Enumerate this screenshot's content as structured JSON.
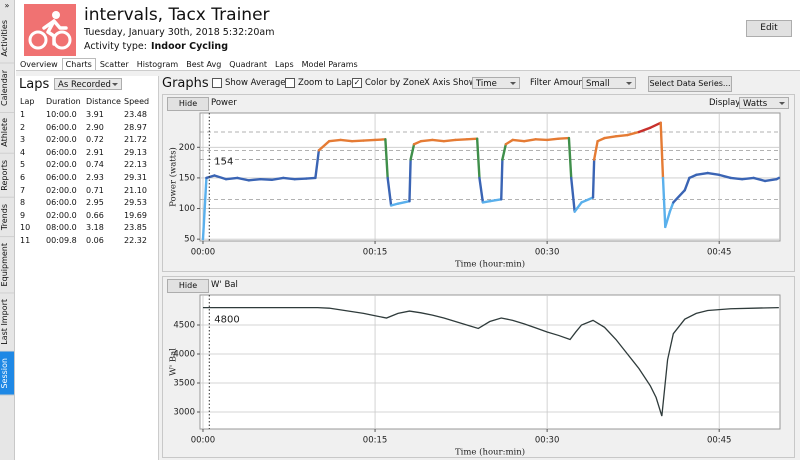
{
  "sidebar": {
    "toggle": "»",
    "tabs": [
      "Activities",
      "Calendar",
      "Athlete",
      "Reports",
      "Trends",
      "Equipment",
      "Last Import",
      "Session"
    ],
    "selected": 7
  },
  "header": {
    "title": "intervals, Tacx Trainer",
    "date": "Tuesday, January 30th, 2018 5:32:20am",
    "activity_type_label": "Activity type:",
    "activity_type": "Indoor Cycling",
    "edit": "Edit"
  },
  "tabs": {
    "items": [
      "Overview",
      "Charts",
      "Scatter",
      "Histogram",
      "Best Avg",
      "Quadrant",
      "Laps",
      "Model Params"
    ],
    "selected": 1
  },
  "laps": {
    "title": "Laps",
    "mode": "As Recorded",
    "columns": [
      "Lap",
      "Duration",
      "Distance",
      "Speed"
    ],
    "rows": [
      [
        "1",
        "10:00.0",
        "3.91",
        "23.48"
      ],
      [
        "2",
        "06:00.0",
        "2.90",
        "28.97"
      ],
      [
        "3",
        "02:00.0",
        "0.72",
        "21.72"
      ],
      [
        "4",
        "06:00.0",
        "2.91",
        "29.13"
      ],
      [
        "5",
        "02:00.0",
        "0.74",
        "22.13"
      ],
      [
        "6",
        "06:00.0",
        "2.93",
        "29.31"
      ],
      [
        "7",
        "02:00.0",
        "0.71",
        "21.10"
      ],
      [
        "8",
        "06:00.0",
        "2.95",
        "29.53"
      ],
      [
        "9",
        "02:00.0",
        "0.66",
        "19.69"
      ],
      [
        "10",
        "08:00.0",
        "3.18",
        "23.85"
      ],
      [
        "11",
        "00:09.8",
        "0.06",
        "22.32"
      ]
    ]
  },
  "graphs": {
    "title": "Graphs",
    "options": [
      {
        "label": "Show Average",
        "checked": false
      },
      {
        "label": "Zoom to Lap",
        "checked": false
      },
      {
        "label": "Color by Zone",
        "checked": true
      }
    ],
    "x_axis_label": "X Axis Shows:",
    "x_axis_value": "Time",
    "filter_label": "Filter Amount:",
    "filter_value": "Small",
    "select_button": "Select Data Series..."
  },
  "charts": [
    {
      "type": "line",
      "hide": "Hide",
      "name": "Power",
      "display_label": "Display:",
      "display_value": "Watts",
      "ylabel": "Power (watts)",
      "xlabel": "Time (hour:min)",
      "grid": true,
      "xlim": [
        -0.26,
        50.3
      ],
      "ylim": [
        47,
        256
      ],
      "xticks": [
        {
          "value": 0,
          "label": "00:00"
        },
        {
          "value": 15,
          "label": "00:15"
        },
        {
          "value": 30,
          "label": "00:30"
        },
        {
          "value": 45,
          "label": "00:45"
        }
      ],
      "yticks": [
        50,
        100,
        150,
        200
      ],
      "zones": [
        {
          "min": 0,
          "color": "#5ab0ec"
        },
        {
          "min": 115,
          "color": "#3a64b4"
        },
        {
          "min": 180,
          "color": "#3f8f4a"
        },
        {
          "min": 195,
          "color": "#e57b34"
        },
        {
          "min": 225,
          "color": "#c8302c"
        }
      ],
      "x": [
        0,
        0.3,
        1,
        2,
        3,
        4,
        5,
        6,
        7,
        8,
        9,
        9.8,
        10.1,
        11,
        12,
        13,
        14,
        15,
        15.9,
        16.1,
        16.4,
        17,
        18,
        18.1,
        18.4,
        19,
        20,
        21,
        22,
        23,
        23.9,
        24.1,
        24.4,
        25,
        26,
        26.1,
        26.4,
        27,
        28,
        29,
        30,
        31,
        31.9,
        32.1,
        32.4,
        33,
        34,
        34.1,
        34.4,
        35,
        36,
        37,
        38,
        39,
        39.9,
        40.1,
        40.3,
        40.7,
        41,
        42,
        42.4,
        43,
        44,
        45,
        46,
        47,
        48,
        49,
        50,
        50.2
      ],
      "values": [
        50,
        150,
        154,
        148,
        150,
        146,
        148,
        147,
        150,
        148,
        149,
        150,
        195,
        210,
        212,
        210,
        211,
        212,
        213,
        150,
        105,
        108,
        112,
        180,
        205,
        210,
        212,
        210,
        212,
        213,
        214,
        150,
        110,
        112,
        115,
        180,
        205,
        212,
        210,
        213,
        212,
        214,
        215,
        150,
        95,
        110,
        118,
        180,
        210,
        215,
        218,
        220,
        225,
        232,
        240,
        150,
        70,
        95,
        110,
        130,
        150,
        155,
        158,
        155,
        150,
        148,
        150,
        145,
        148,
        150
      ],
      "cursor": {
        "x": 0.55,
        "value": 154
      }
    },
    {
      "type": "line",
      "hide": "Hide",
      "name": "W' Bal",
      "ylabel": "W' Bal",
      "xlabel": "Time (hour:min)",
      "grid": true,
      "color": "#2f3b3b",
      "xlim": [
        -0.26,
        50.3
      ],
      "ylim": [
        2707,
        5017
      ],
      "xticks": [
        {
          "value": 0,
          "label": "00:00"
        },
        {
          "value": 15,
          "label": "00:15"
        },
        {
          "value": 30,
          "label": "00:30"
        },
        {
          "value": 45,
          "label": "00:45"
        }
      ],
      "yticks": [
        3000,
        3500,
        4000,
        4500
      ],
      "x": [
        0,
        10,
        11,
        12,
        13,
        14,
        15,
        16,
        17,
        18,
        19,
        20,
        21,
        22,
        23,
        24,
        25,
        26,
        27,
        28,
        29,
        30,
        31,
        32,
        32.5,
        33,
        34,
        35,
        36,
        37,
        38,
        39,
        39.5,
        40,
        40.5,
        41,
        42,
        43,
        44,
        46,
        48,
        50.2
      ],
      "values": [
        4800,
        4800,
        4790,
        4760,
        4730,
        4700,
        4660,
        4620,
        4700,
        4740,
        4710,
        4670,
        4620,
        4560,
        4500,
        4440,
        4560,
        4620,
        4580,
        4520,
        4450,
        4380,
        4320,
        4250,
        4380,
        4500,
        4580,
        4460,
        4250,
        4000,
        3750,
        3450,
        3250,
        2930,
        3900,
        4350,
        4600,
        4700,
        4750,
        4780,
        4790,
        4800
      ],
      "cursor": {
        "x": 0.55,
        "value": 4800
      }
    }
  ]
}
